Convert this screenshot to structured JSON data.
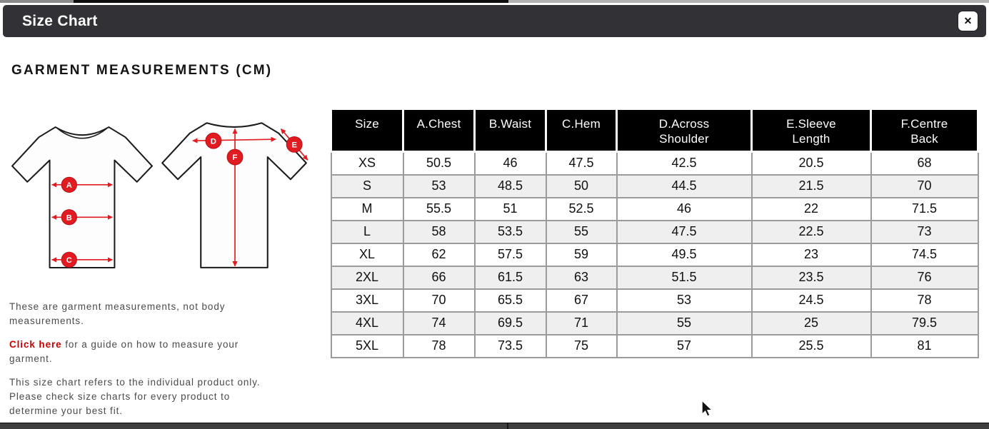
{
  "modal": {
    "title": "Size Chart",
    "close_glyph": "✕"
  },
  "content": {
    "heading": "GARMENT MEASUREMENTS (CM)"
  },
  "diagram": {
    "front_labels": [
      "A",
      "B",
      "C"
    ],
    "back_labels": [
      "D",
      "E",
      "F"
    ],
    "accent_color": "#e01b22"
  },
  "table": {
    "columns": [
      "Size",
      "A.Chest",
      "B.Waist",
      "C.Hem",
      "D.Across\nShoulder",
      "E.Sleeve\nLength",
      "F.Centre\nBack"
    ],
    "rows": [
      [
        "XS",
        "50.5",
        "46",
        "47.5",
        "42.5",
        "20.5",
        "68"
      ],
      [
        "S",
        "53",
        "48.5",
        "50",
        "44.5",
        "21.5",
        "70"
      ],
      [
        "M",
        "55.5",
        "51",
        "52.5",
        "46",
        "22",
        "71.5"
      ],
      [
        "L",
        "58",
        "53.5",
        "55",
        "47.5",
        "22.5",
        "73"
      ],
      [
        "XL",
        "62",
        "57.5",
        "59",
        "49.5",
        "23",
        "74.5"
      ],
      [
        "2XL",
        "66",
        "61.5",
        "63",
        "51.5",
        "23.5",
        "76"
      ],
      [
        "3XL",
        "70",
        "65.5",
        "67",
        "53",
        "24.5",
        "78"
      ],
      [
        "4XL",
        "74",
        "69.5",
        "71",
        "55",
        "25",
        "79.5"
      ],
      [
        "5XL",
        "78",
        "73.5",
        "75",
        "57",
        "25.5",
        "81"
      ]
    ]
  },
  "notes": {
    "note1": "These are garment measurements, not body\nmeasurements.",
    "link_text": "Click here",
    "note2_rest": " for a guide on how to measure your\ngarment.",
    "note3": "This size chart refers to the individual product only.\nPlease check size charts for every product to\ndetermine your best fit."
  },
  "colors": {
    "header_bar": "#323236",
    "table_header_bg": "#000000",
    "row_stripe": "#efefef",
    "accent_red": "#e01b22",
    "link_red": "#c90000"
  }
}
